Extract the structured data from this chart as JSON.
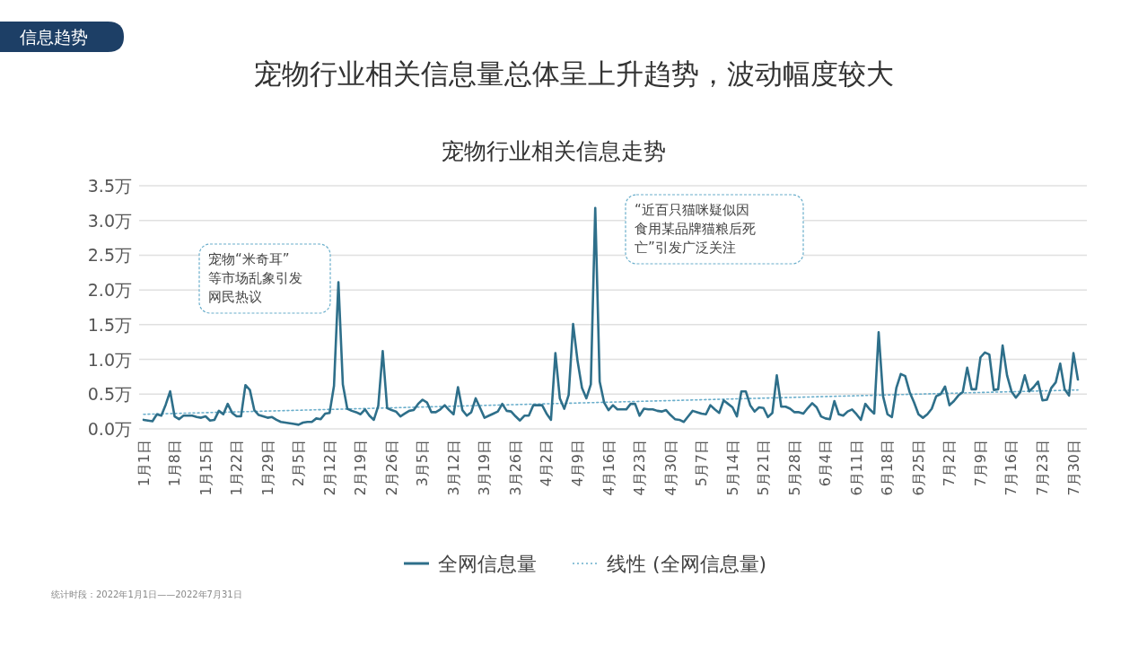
{
  "chart_data": {
    "type": "line",
    "title": "宠物行业相关信息量总体呈上升趋势，波动幅度较大",
    "subtitle": "宠物行业相关信息走势",
    "annotations": [
      "信息趋势",
      "宠物“米奇耳”等市场乱象引发网民热议",
      "“近百只猫咪疑似因食用某品牌猫粮后死亡”引发广泛关注",
      "统计时段：2022年1月1日——2022年7月31日"
    ],
    "categories": [
      "1月1日",
      null,
      null,
      null,
      null,
      null,
      null,
      "1月8日",
      null,
      null,
      null,
      null,
      null,
      null,
      "1月15日",
      null,
      null,
      null,
      null,
      null,
      null,
      "1月22日",
      null,
      null,
      null,
      null,
      null,
      null,
      "1月29日",
      null,
      null,
      null,
      null,
      null,
      null,
      "2月5日",
      null,
      null,
      null,
      null,
      null,
      null,
      "2月12日",
      null,
      null,
      null,
      null,
      null,
      null,
      "2月19日",
      null,
      null,
      null,
      null,
      null,
      null,
      "2月26日",
      null,
      null,
      null,
      null,
      null,
      null,
      "3月5日",
      null,
      null,
      null,
      null,
      null,
      null,
      "3月12日",
      null,
      null,
      null,
      null,
      null,
      null,
      "3月19日",
      null,
      null,
      null,
      null,
      null,
      null,
      "3月26日",
      null,
      null,
      null,
      null,
      null,
      null,
      "4月2日",
      null,
      null,
      null,
      null,
      null,
      null,
      "4月9日",
      null,
      null,
      null,
      null,
      null,
      null,
      "4月16日",
      null,
      null,
      null,
      null,
      null,
      null,
      "4月23日",
      null,
      null,
      null,
      null,
      null,
      null,
      "4月30日",
      null,
      null,
      null,
      null,
      null,
      null,
      "5月7日",
      null,
      null,
      null,
      null,
      null,
      null,
      "5月14日",
      null,
      null,
      null,
      null,
      null,
      null,
      "5月21日",
      null,
      null,
      null,
      null,
      null,
      null,
      "5月28日",
      null,
      null,
      null,
      null,
      null,
      null,
      "6月4日",
      null,
      null,
      null,
      null,
      null,
      null,
      "6月11日",
      null,
      null,
      null,
      null,
      null,
      null,
      "6月18日",
      null,
      null,
      null,
      null,
      null,
      null,
      "6月25日",
      null,
      null,
      null,
      null,
      null,
      null,
      "7月2日",
      null,
      null,
      null,
      null,
      null,
      null,
      "7月9日",
      null,
      null,
      null,
      null,
      null,
      null,
      "7月16日",
      null,
      null,
      null,
      null,
      null,
      null,
      "7月23日",
      null,
      null,
      null,
      null,
      null,
      null,
      "7月30日",
      null
    ],
    "series": [
      {
        "name": "全网信息量",
        "color": "#2e6f8a",
        "line_style": "solid",
        "values": [
          0.13,
          0.12,
          0.11,
          0.21,
          0.19,
          0.35,
          0.54,
          0.18,
          0.14,
          0.19,
          0.19,
          0.19,
          0.17,
          0.16,
          0.18,
          0.12,
          0.13,
          0.26,
          0.21,
          0.36,
          0.23,
          0.18,
          0.18,
          0.63,
          0.56,
          0.27,
          0.2,
          0.18,
          0.16,
          0.17,
          0.13,
          0.1,
          0.09,
          0.08,
          0.07,
          0.06,
          0.09,
          0.1,
          0.1,
          0.15,
          0.14,
          0.22,
          0.23,
          0.62,
          2.11,
          0.64,
          0.29,
          0.26,
          0.24,
          0.21,
          0.28,
          0.19,
          0.13,
          0.33,
          1.12,
          0.3,
          0.27,
          0.25,
          0.18,
          0.22,
          0.26,
          0.27,
          0.36,
          0.42,
          0.38,
          0.24,
          0.24,
          0.28,
          0.34,
          0.27,
          0.21,
          0.6,
          0.27,
          0.19,
          0.24,
          0.44,
          0.3,
          0.16,
          0.19,
          0.22,
          0.25,
          0.36,
          0.26,
          0.25,
          0.18,
          0.12,
          0.19,
          0.19,
          0.34,
          0.34,
          0.34,
          0.22,
          0.13,
          1.09,
          0.44,
          0.29,
          0.49,
          1.51,
          0.98,
          0.59,
          0.44,
          0.64,
          3.18,
          0.68,
          0.38,
          0.27,
          0.34,
          0.28,
          0.28,
          0.28,
          0.36,
          0.36,
          0.19,
          0.29,
          0.28,
          0.28,
          0.26,
          0.25,
          0.27,
          0.2,
          0.14,
          0.13,
          0.1,
          0.18,
          0.26,
          0.24,
          0.22,
          0.21,
          0.34,
          0.28,
          0.23,
          0.41,
          0.36,
          0.31,
          0.18,
          0.54,
          0.54,
          0.34,
          0.25,
          0.31,
          0.3,
          0.17,
          0.23,
          0.77,
          0.32,
          0.32,
          0.29,
          0.24,
          0.24,
          0.22,
          0.3,
          0.37,
          0.31,
          0.18,
          0.15,
          0.14,
          0.4,
          0.21,
          0.19,
          0.25,
          0.28,
          0.21,
          0.13,
          0.36,
          0.28,
          0.22,
          1.39,
          0.47,
          0.21,
          0.17,
          0.59,
          0.79,
          0.76,
          0.53,
          0.38,
          0.21,
          0.16,
          0.21,
          0.29,
          0.47,
          0.5,
          0.61,
          0.34,
          0.4,
          0.48,
          0.53,
          0.88,
          0.57,
          0.57,
          1.03,
          1.1,
          1.07,
          0.56,
          0.57,
          1.2,
          0.77,
          0.54,
          0.45,
          0.53,
          0.77,
          0.54,
          0.6,
          0.68,
          0.41,
          0.42,
          0.59,
          0.67,
          0.94,
          0.57,
          0.48,
          1.09,
          0.71
        ]
      },
      {
        "name": "线性 (全网信息量)",
        "color": "#6aaecb",
        "type": "line",
        "line_style": "dotted",
        "values": [
          0.21,
          null,
          null,
          null,
          null,
          null,
          null,
          null,
          null,
          null,
          null,
          null,
          null,
          null,
          null,
          null,
          null,
          null,
          null,
          null,
          null,
          null,
          null,
          null,
          null,
          null,
          null,
          null,
          null,
          null,
          null,
          null,
          null,
          null,
          null,
          null,
          null,
          null,
          null,
          null,
          null,
          null,
          null,
          null,
          null,
          null,
          null,
          null,
          null,
          null,
          null,
          null,
          null,
          null,
          null,
          null,
          null,
          null,
          null,
          null,
          null,
          null,
          null,
          null,
          null,
          null,
          null,
          null,
          null,
          null,
          null,
          null,
          null,
          null,
          null,
          null,
          null,
          null,
          null,
          null,
          null,
          null,
          null,
          null,
          null,
          null,
          null,
          null,
          null,
          null,
          null,
          null,
          null,
          null,
          null,
          null,
          null,
          null,
          null,
          null,
          null,
          null,
          null,
          null,
          null,
          null,
          null,
          null,
          null,
          null,
          null,
          null,
          null,
          null,
          null,
          null,
          null,
          null,
          null,
          null,
          null,
          null,
          null,
          null,
          null,
          null,
          null,
          null,
          null,
          null,
          null,
          null,
          null,
          null,
          null,
          null,
          null,
          null,
          null,
          null,
          null,
          null,
          null,
          null,
          null,
          null,
          null,
          null,
          null,
          null,
          null,
          null,
          null,
          null,
          null,
          null,
          null,
          null,
          null,
          null,
          null,
          null,
          null,
          null,
          null,
          null,
          null,
          null,
          null,
          null,
          null,
          null,
          null,
          null,
          null,
          null,
          null,
          null,
          null,
          null,
          null,
          null,
          null,
          null,
          null,
          null,
          null,
          null,
          null,
          null,
          null,
          null,
          null,
          null,
          null,
          null,
          null,
          null,
          null,
          null,
          null,
          null,
          null,
          null,
          null,
          null,
          null,
          null,
          null,
          null,
          null,
          0.56
        ]
      }
    ],
    "ylim": [
      0,
      3.5
    ],
    "yticks": [
      {
        "value": 0,
        "label": "0.0万"
      },
      {
        "value": 0.5,
        "label": "0.5万"
      },
      {
        "value": 1,
        "label": "1.0万"
      },
      {
        "value": 1.5,
        "label": "1.5万"
      },
      {
        "value": 2,
        "label": "2.0万"
      },
      {
        "value": 2.5,
        "label": "2.5万"
      },
      {
        "value": 3,
        "label": "3.0万"
      },
      {
        "value": 3.5,
        "label": "3.5万"
      }
    ],
    "grid": "y",
    "legend": "bottom"
  }
}
